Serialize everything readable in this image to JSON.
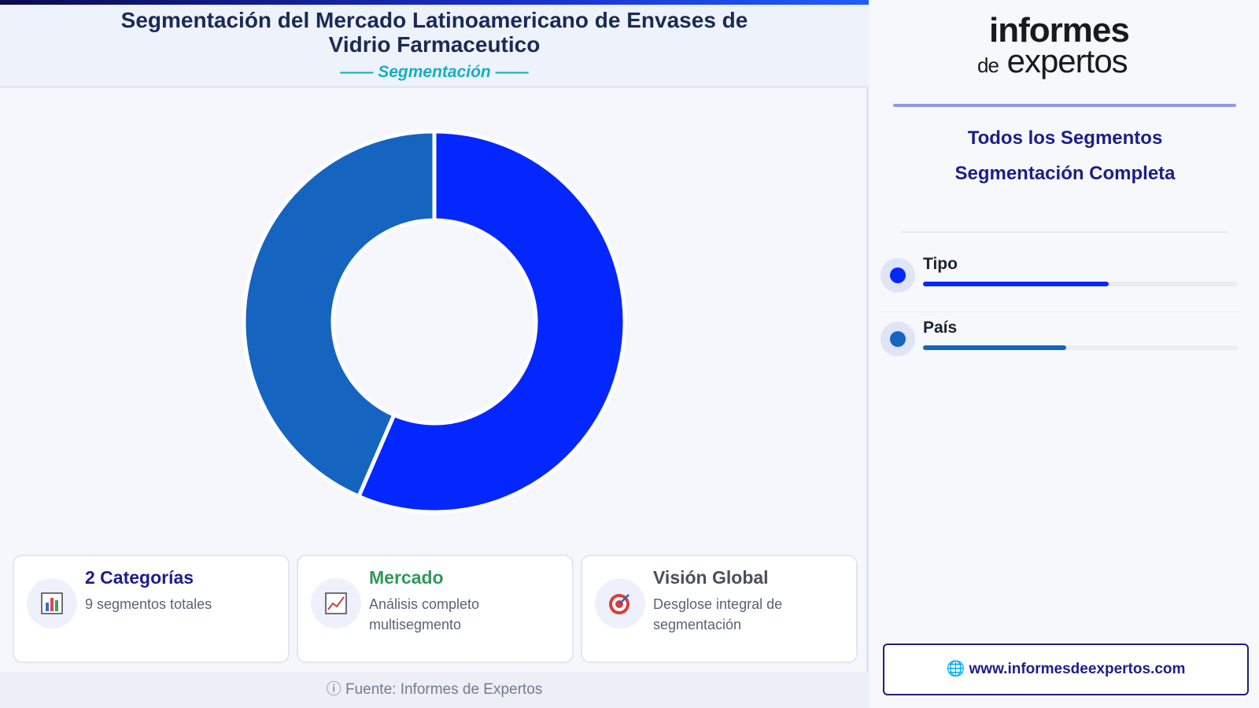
{
  "header": {
    "title": "Segmentación del Mercado Latinoamericano de Envases de Vidrio Farmaceutico",
    "subtitle": "—— Segmentación ——"
  },
  "chart_data": {
    "type": "pie",
    "donut": true,
    "categories": [
      "Tipo",
      "País"
    ],
    "values": [
      56.5,
      43.5
    ],
    "colors": [
      "#0527ff",
      "#1565c0"
    ]
  },
  "cards": [
    {
      "title": "2 Categorías",
      "desc": "9 segmentos totales",
      "icon": "bar-chart-icon",
      "title_color": "#1c1e8a"
    },
    {
      "title": "Mercado",
      "desc": "Análisis completo multisegmento",
      "icon": "trend-chart-icon",
      "title_color": "#2e9a5a"
    },
    {
      "title": "Visión Global",
      "desc": "Desglose integral de segmentación",
      "icon": "target-icon",
      "title_color": "#4a4f5c"
    }
  ],
  "footer": {
    "source": "ⓘ Fuente: Informes de Expertos"
  },
  "sidebar": {
    "logo_line1": "informes",
    "logo_de": "de",
    "logo_line2": "expertos",
    "heading1": "Todos los Segmentos",
    "heading2": "Segmentación Completa",
    "segments": [
      {
        "label": "Tipo",
        "color": "#0527ff",
        "fraction": 0.59
      },
      {
        "label": "País",
        "color": "#1565c0",
        "fraction": 0.455
      }
    ],
    "url": "🌐 www.informesdeexpertos.com"
  }
}
